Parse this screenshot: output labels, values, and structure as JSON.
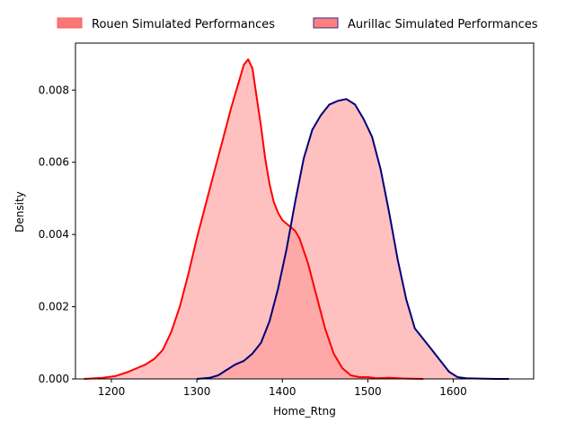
{
  "chart_data": {
    "type": "area",
    "xlabel": "Home_Rtng",
    "ylabel": "Density",
    "xlim": [
      1158,
      1694
    ],
    "ylim": [
      0,
      0.0093
    ],
    "x_ticks": [
      1200,
      1300,
      1400,
      1500,
      1600
    ],
    "y_ticks": [
      0.0,
      0.002,
      0.004,
      0.006,
      0.008
    ],
    "x_tick_labels": [
      "1200",
      "1300",
      "1400",
      "1500",
      "1600"
    ],
    "y_tick_labels": [
      "0.000",
      "0.002",
      "0.004",
      "0.006",
      "0.008"
    ],
    "grid": false,
    "legend_position": "top-center, outside plot",
    "series": [
      {
        "name": "Rouen Simulated Performances",
        "line_color": "#ff0000",
        "fill_color": "#ff9999",
        "x": [
          1168,
          1190,
          1205,
          1220,
          1240,
          1250,
          1260,
          1270,
          1280,
          1290,
          1300,
          1310,
          1320,
          1330,
          1340,
          1350,
          1355,
          1360,
          1365,
          1370,
          1375,
          1380,
          1385,
          1390,
          1395,
          1400,
          1405,
          1410,
          1415,
          1420,
          1430,
          1440,
          1450,
          1460,
          1470,
          1480,
          1490,
          1500,
          1510,
          1525,
          1545,
          1565
        ],
        "y": [
          0.0,
          3e-05,
          8e-05,
          0.0002,
          0.0004,
          0.00055,
          0.0008,
          0.0013,
          0.002,
          0.0029,
          0.0039,
          0.0048,
          0.0057,
          0.0066,
          0.0075,
          0.0083,
          0.0087,
          0.00885,
          0.0086,
          0.0078,
          0.007,
          0.0061,
          0.0054,
          0.0049,
          0.0046,
          0.0044,
          0.0043,
          0.0042,
          0.0041,
          0.0039,
          0.0032,
          0.0023,
          0.0014,
          0.0007,
          0.0003,
          0.0001,
          5e-05,
          5e-05,
          2e-05,
          3e-05,
          1e-05,
          0.0
        ]
      },
      {
        "name": "Aurillac Simulated Performances",
        "line_color": "#00007a",
        "fill_color": "#ff9999",
        "x": [
          1300,
          1315,
          1325,
          1335,
          1345,
          1355,
          1365,
          1375,
          1385,
          1395,
          1405,
          1415,
          1425,
          1435,
          1445,
          1455,
          1465,
          1475,
          1485,
          1495,
          1505,
          1515,
          1525,
          1535,
          1545,
          1555,
          1565,
          1575,
          1585,
          1595,
          1605,
          1615,
          1630,
          1650,
          1665
        ],
        "y": [
          0.0,
          3e-05,
          0.0001,
          0.00025,
          0.0004,
          0.0005,
          0.0007,
          0.001,
          0.0016,
          0.0025,
          0.0036,
          0.0049,
          0.0061,
          0.0069,
          0.0073,
          0.0076,
          0.0077,
          0.00775,
          0.0076,
          0.0072,
          0.0067,
          0.0058,
          0.0046,
          0.0033,
          0.0022,
          0.0014,
          0.0011,
          0.0008,
          0.0005,
          0.0002,
          5e-05,
          2e-05,
          1e-05,
          0.0,
          0.0
        ]
      }
    ]
  },
  "legend": {
    "items": [
      {
        "label": "Rouen Simulated Performances",
        "swatch_fill": "#f87878",
        "swatch_edge": "#ff5a5a"
      },
      {
        "label": "Aurillac Simulated Performances",
        "swatch_fill": "#ff7f7f",
        "swatch_edge": "#2f2f9a"
      }
    ]
  }
}
